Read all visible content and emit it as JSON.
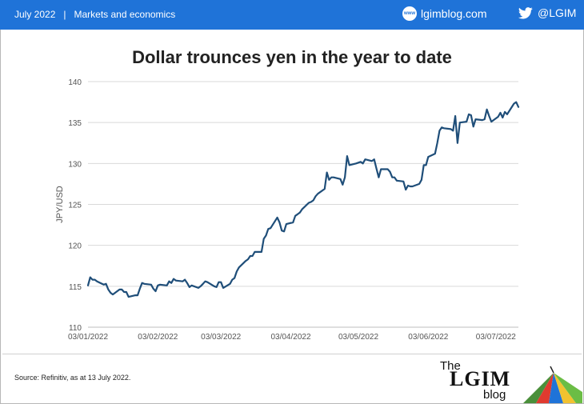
{
  "header": {
    "date": "July 2022",
    "separator": "|",
    "category": "Markets and economics",
    "site_badge": "www",
    "site": "lgimblog.com",
    "twitter": "@LGIM"
  },
  "footer": {
    "source": "Source: Refinitiv, as at 13 July 2022.",
    "logo_the": "The",
    "logo_main": "LGIM",
    "logo_blog": "blog"
  },
  "colors": {
    "header_bg": "#1f73d8",
    "line": "#1f4e79",
    "grid": "#d9d9d9"
  },
  "chart_data": {
    "type": "line",
    "title": "Dollar trounces yen in the year to date",
    "xlabel": "",
    "ylabel": "JPY/USD",
    "ylim": [
      110,
      140
    ],
    "yticks": [
      110,
      115,
      120,
      125,
      130,
      135,
      140
    ],
    "xticks": [
      "03/01/2022",
      "03/02/2022",
      "03/03/2022",
      "03/04/2022",
      "03/05/2022",
      "03/06/2022",
      "03/07/2022"
    ],
    "grid": true,
    "series": [
      {
        "x": [
          "2022-01-03",
          "2022-01-04",
          "2022-01-05",
          "2022-01-06",
          "2022-01-07",
          "2022-01-10",
          "2022-01-11",
          "2022-01-12",
          "2022-01-13",
          "2022-01-14",
          "2022-01-17",
          "2022-01-18",
          "2022-01-19",
          "2022-01-20",
          "2022-01-21",
          "2022-01-24",
          "2022-01-25",
          "2022-01-26",
          "2022-01-27",
          "2022-01-28",
          "2022-01-31",
          "2022-02-01",
          "2022-02-02",
          "2022-02-03",
          "2022-02-04",
          "2022-02-07",
          "2022-02-08",
          "2022-02-09",
          "2022-02-10",
          "2022-02-11",
          "2022-02-14",
          "2022-02-15",
          "2022-02-16",
          "2022-02-17",
          "2022-02-18",
          "2022-02-21",
          "2022-02-22",
          "2022-02-23",
          "2022-02-24",
          "2022-02-25",
          "2022-02-28",
          "2022-03-01",
          "2022-03-02",
          "2022-03-03",
          "2022-03-04",
          "2022-03-07",
          "2022-03-08",
          "2022-03-09",
          "2022-03-10",
          "2022-03-11",
          "2022-03-14",
          "2022-03-15",
          "2022-03-16",
          "2022-03-17",
          "2022-03-18",
          "2022-03-21",
          "2022-03-22",
          "2022-03-23",
          "2022-03-24",
          "2022-03-25",
          "2022-03-28",
          "2022-03-29",
          "2022-03-30",
          "2022-03-31",
          "2022-04-01",
          "2022-04-04",
          "2022-04-05",
          "2022-04-06",
          "2022-04-07",
          "2022-04-08",
          "2022-04-11",
          "2022-04-12",
          "2022-04-13",
          "2022-04-14",
          "2022-04-15",
          "2022-04-18",
          "2022-04-19",
          "2022-04-20",
          "2022-04-21",
          "2022-04-22",
          "2022-04-25",
          "2022-04-26",
          "2022-04-27",
          "2022-04-28",
          "2022-04-29",
          "2022-05-02",
          "2022-05-03",
          "2022-05-04",
          "2022-05-05",
          "2022-05-06",
          "2022-05-09",
          "2022-05-10",
          "2022-05-11",
          "2022-05-12",
          "2022-05-13",
          "2022-05-16",
          "2022-05-17",
          "2022-05-18",
          "2022-05-19",
          "2022-05-20",
          "2022-05-23",
          "2022-05-24",
          "2022-05-25",
          "2022-05-26",
          "2022-05-27",
          "2022-05-30",
          "2022-05-31",
          "2022-06-01",
          "2022-06-02",
          "2022-06-03",
          "2022-06-06",
          "2022-06-07",
          "2022-06-08",
          "2022-06-09",
          "2022-06-10",
          "2022-06-13",
          "2022-06-14",
          "2022-06-15",
          "2022-06-16",
          "2022-06-17",
          "2022-06-20",
          "2022-06-21",
          "2022-06-22",
          "2022-06-23",
          "2022-06-24",
          "2022-06-27",
          "2022-06-28",
          "2022-06-29",
          "2022-06-30",
          "2022-07-01",
          "2022-07-04",
          "2022-07-05",
          "2022-07-06",
          "2022-07-07",
          "2022-07-08",
          "2022-07-11",
          "2022-07-12",
          "2022-07-13"
        ],
        "y": [
          115.1,
          116.1,
          115.8,
          115.8,
          115.6,
          115.2,
          115.3,
          114.6,
          114.2,
          114.0,
          114.6,
          114.6,
          114.3,
          114.3,
          113.7,
          113.9,
          113.9,
          114.7,
          115.4,
          115.3,
          115.2,
          114.7,
          114.4,
          115.1,
          115.2,
          115.1,
          115.6,
          115.4,
          115.9,
          115.7,
          115.6,
          115.8,
          115.4,
          114.9,
          115.1,
          114.8,
          115.0,
          115.3,
          115.6,
          115.5,
          115.0,
          114.9,
          115.5,
          115.5,
          114.8,
          115.3,
          115.8,
          116.0,
          116.8,
          117.3,
          118.1,
          118.3,
          118.7,
          118.7,
          119.2,
          119.2,
          120.8,
          121.2,
          122.0,
          122.1,
          123.4,
          122.8,
          121.8,
          121.7,
          122.6,
          122.8,
          123.6,
          123.8,
          124.0,
          124.4,
          125.2,
          125.3,
          125.5,
          126.0,
          126.3,
          126.9,
          128.9,
          128.0,
          128.3,
          128.3,
          128.1,
          127.4,
          128.3,
          130.9,
          129.8,
          130.0,
          130.1,
          130.2,
          130.0,
          130.5,
          130.3,
          130.5,
          129.4,
          128.3,
          129.3,
          129.3,
          129.0,
          128.3,
          128.3,
          127.9,
          127.8,
          126.8,
          127.3,
          127.2,
          127.2,
          127.5,
          128.0,
          129.8,
          129.8,
          130.8,
          131.2,
          132.5,
          134.0,
          134.4,
          134.3,
          134.2,
          134.0,
          135.8,
          132.5,
          135.0,
          135.1,
          136.0,
          135.9,
          134.5,
          135.4,
          135.3,
          135.4,
          136.6,
          135.8,
          135.1,
          135.7,
          136.2,
          135.6,
          136.3,
          136.0,
          137.3,
          137.5,
          136.9
        ]
      }
    ]
  }
}
